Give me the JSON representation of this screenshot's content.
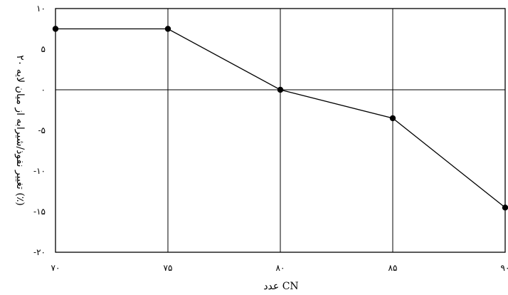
{
  "chart_data": {
    "type": "line",
    "x": [
      70,
      75,
      80,
      85,
      90
    ],
    "x_tick_labels": [
      "۷۰",
      "۷۵",
      "۸۰",
      "۸۵",
      "۹۰"
    ],
    "y_tick_values": [
      10,
      5,
      0,
      -5,
      -10,
      -15,
      -20
    ],
    "y_tick_labels": [
      "۱۰",
      "۵",
      "۰",
      "-۵",
      "-۱۰",
      "-۱۵",
      "-۲۰"
    ],
    "series": [
      {
        "values": [
          7.5,
          7.5,
          0,
          -3.5,
          -14.5
        ]
      }
    ],
    "xlabel": "عدد CN",
    "ylabel": "تغییر نفوذ/شیرابه از میان لایه ۲۰ (٪)",
    "xlim": [
      70,
      90
    ],
    "ylim": [
      -20,
      10
    ],
    "grid": true,
    "colors": {
      "line": "#000000",
      "marker": "#000000",
      "grid": "#000000"
    }
  }
}
